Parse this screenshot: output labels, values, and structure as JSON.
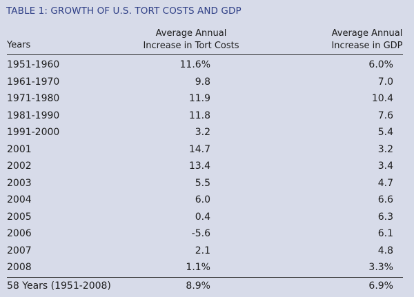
{
  "title": "TABLE 1: GROWTH OF U.S. TORT COSTS AND GDP",
  "columns": {
    "years": "Years",
    "tort_line1": "Average Annual",
    "tort_line2": "Increase in Tort Costs",
    "gdp_line1": "Average Annual",
    "gdp_line2": "Increase in GDP"
  },
  "rows": [
    {
      "years": "1951-1960",
      "tort": "11.6%",
      "gdp": "6.0%"
    },
    {
      "years": "1961-1970",
      "tort": "9.8",
      "gdp": "7.0"
    },
    {
      "years": "1971-1980",
      "tort": "11.9",
      "gdp": "10.4"
    },
    {
      "years": "1981-1990",
      "tort": "11.8",
      "gdp": "7.6"
    },
    {
      "years": "1991-2000",
      "tort": "3.2",
      "gdp": "5.4"
    },
    {
      "years": "2001",
      "tort": "14.7",
      "gdp": "3.2"
    },
    {
      "years": "2002",
      "tort": "13.4",
      "gdp": "3.4"
    },
    {
      "years": "2003",
      "tort": "5.5",
      "gdp": "4.7"
    },
    {
      "years": "2004",
      "tort": "6.0",
      "gdp": "6.6"
    },
    {
      "years": "2005",
      "tort": "0.4",
      "gdp": "6.3"
    },
    {
      "years": "2006",
      "tort": "-5.6",
      "gdp": "6.1"
    },
    {
      "years": "2007",
      "tort": "2.1",
      "gdp": "4.8"
    },
    {
      "years": "2008",
      "tort": "1.1%",
      "gdp": "3.3%"
    }
  ],
  "total": {
    "years": "58 Years (1951-2008)",
    "tort": "8.9%",
    "gdp": "6.9%"
  }
}
